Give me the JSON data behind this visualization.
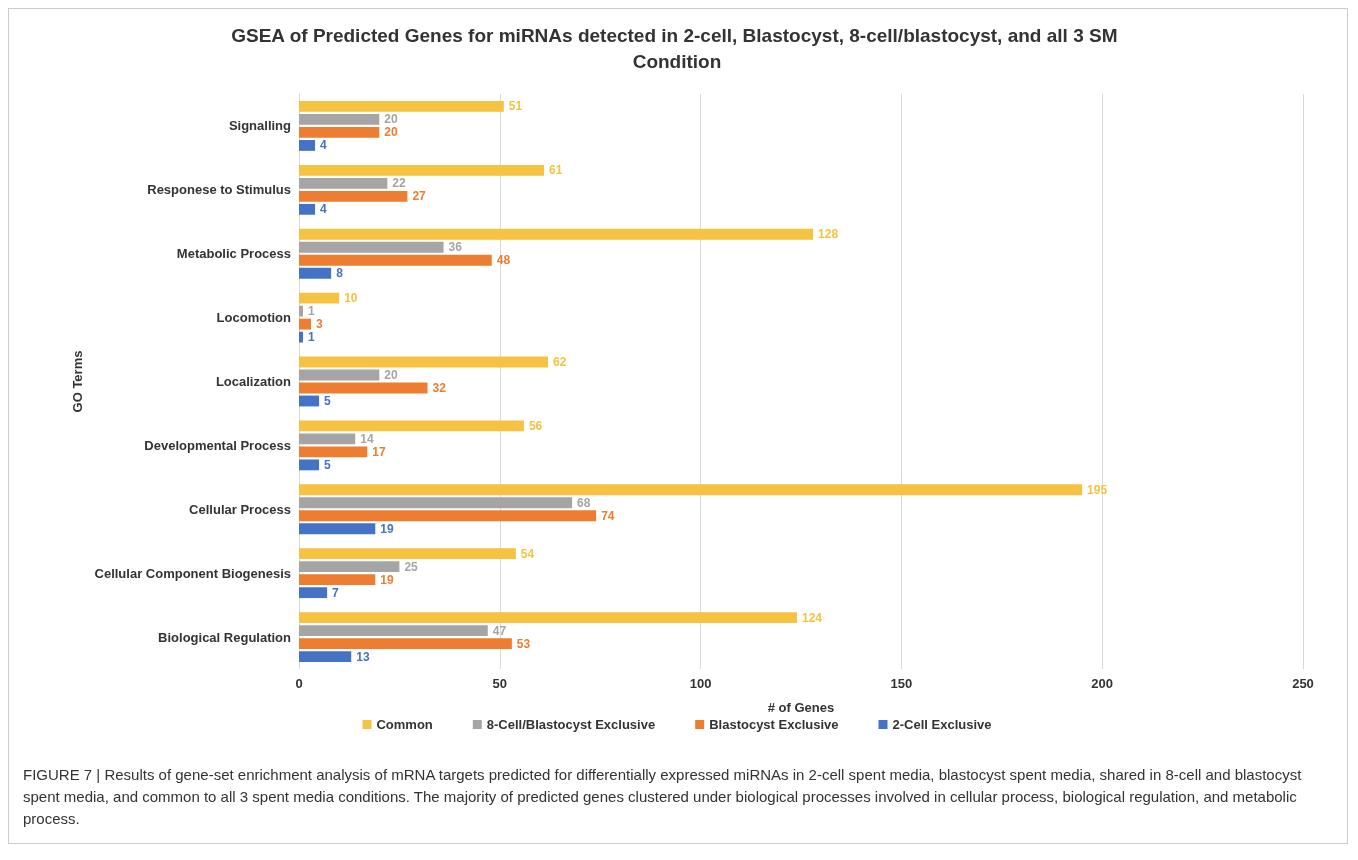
{
  "chart_data": {
    "type": "bar",
    "orientation": "horizontal",
    "title": "GSEA of Predicted Genes for miRNAs detected in 2-cell, Blastocyst, 8-cell/blastocyst, and all 3 SM Condition",
    "xlabel": "# of Genes",
    "ylabel": "GO Terms",
    "categories": [
      "Signalling",
      "Responese to Stimulus",
      "Metabolic Process",
      "Locomotion",
      "Localization",
      "Developmental Process",
      "Cellular Process",
      "Cellular Component Biogenesis",
      "Biological Regulation"
    ],
    "series": [
      {
        "name": "Common",
        "color": "#f5c242",
        "values": [
          51,
          61,
          128,
          10,
          62,
          56,
          195,
          54,
          124
        ]
      },
      {
        "name": "8-Cell/Blastocyst Exclusive",
        "color": "#a5a5a5",
        "values": [
          20,
          22,
          36,
          1,
          20,
          14,
          68,
          25,
          47
        ]
      },
      {
        "name": "Blastocyst Exclusive",
        "color": "#ed7d31",
        "values": [
          20,
          27,
          48,
          3,
          32,
          17,
          74,
          19,
          53
        ]
      },
      {
        "name": "2-Cell Exclusive",
        "color": "#4472c4",
        "values": [
          4,
          4,
          8,
          1,
          5,
          5,
          19,
          7,
          13
        ]
      }
    ],
    "xlim": [
      0,
      250
    ],
    "xticks": [
      0,
      50,
      100,
      150,
      200,
      250
    ],
    "grid": "x",
    "legend": "bottom",
    "data_labels": true,
    "annotations": [
      "FIGURE 7 | Results of gene-set enrichment analysis of mRNA targets predicted for differentially expressed miRNAs in 2-cell spent media, blastocyst spent media, shared in 8-cell and blastocyst spent media, and common to all 3 spent media conditions. The majority of predicted genes clustered under biological processes involved in cellular process, biological regulation, and metabolic process."
    ]
  }
}
